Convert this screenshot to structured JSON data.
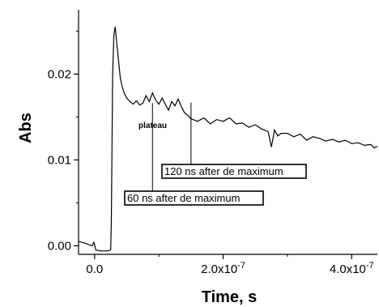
{
  "chart_data": {
    "type": "line",
    "title": "",
    "xlabel": "Time, s",
    "ylabel": "Abs",
    "xlim": [
      -2.5e-08,
      4.4e-07
    ],
    "ylim": [
      -0.001,
      0.0275
    ],
    "grid": false,
    "legend": "none",
    "line_color": "#000000",
    "x_ticks": [
      {
        "value": 0,
        "label": "0.0"
      },
      {
        "value": 2e-07,
        "label": "2.0x10",
        "exp": "-7"
      },
      {
        "value": 4e-07,
        "label": "4.0x10",
        "exp": "-7"
      }
    ],
    "y_ticks": [
      {
        "value": 0.0,
        "label": "0.00"
      },
      {
        "value": 0.01,
        "label": "0.01"
      },
      {
        "value": 0.02,
        "label": "0.02"
      }
    ],
    "series": [
      {
        "x": [
          -2.5e-08,
          -1.5e-08,
          -8e-09,
          -4e-09,
          -1e-09,
          0,
          2e-09,
          1e-08,
          2e-08,
          2.5e-08,
          2.6e-08,
          2.8e-08,
          3e-08,
          3.2e-08,
          3.4e-08,
          3.6e-08,
          3.8e-08,
          4e-08,
          4.3e-08,
          4.6e-08,
          5e-08,
          5.5e-08,
          6e-08,
          6.5e-08,
          7e-08,
          7.5e-08,
          8e-08,
          8.5e-08,
          9e-08,
          9.5e-08,
          1e-07,
          1.05e-07,
          1.1e-07,
          1.15e-07,
          1.2e-07,
          1.25e-07,
          1.3e-07,
          1.35e-07,
          1.4e-07,
          1.45e-07,
          1.5e-07,
          1.6e-07,
          1.7e-07,
          1.8e-07,
          1.9e-07,
          2e-07,
          2.1e-07,
          2.2e-07,
          2.3e-07,
          2.4e-07,
          2.5e-07,
          2.6e-07,
          2.7e-07,
          2.75e-07,
          2.8e-07,
          2.85e-07,
          2.9e-07,
          3e-07,
          3.1e-07,
          3.2e-07,
          3.3e-07,
          3.4e-07,
          3.5e-07,
          3.6e-07,
          3.7e-07,
          3.8e-07,
          3.9e-07,
          4e-07,
          4.1e-07,
          4.2e-07,
          4.3e-07,
          4.35e-07,
          4.4e-07
        ],
        "y": [
          0.0005,
          0.0003,
          0.0001,
          0.0,
          0.0004,
          0.0001,
          -0.0005,
          -0.0006,
          -0.0006,
          -0.0005,
          0.003,
          0.02,
          0.0245,
          0.0255,
          0.024,
          0.0225,
          0.021,
          0.0195,
          0.0185,
          0.0178,
          0.0172,
          0.0168,
          0.0165,
          0.0169,
          0.0164,
          0.0166,
          0.0175,
          0.0168,
          0.0178,
          0.017,
          0.0165,
          0.0172,
          0.0165,
          0.0158,
          0.0168,
          0.0163,
          0.0171,
          0.0162,
          0.0155,
          0.0152,
          0.0148,
          0.0145,
          0.0149,
          0.0142,
          0.0147,
          0.0145,
          0.0149,
          0.0142,
          0.0143,
          0.0138,
          0.0141,
          0.0136,
          0.0133,
          0.0115,
          0.0135,
          0.0128,
          0.0131,
          0.0131,
          0.0127,
          0.013,
          0.0123,
          0.0127,
          0.0125,
          0.0122,
          0.0124,
          0.0121,
          0.0123,
          0.0119,
          0.012,
          0.0117,
          0.0118,
          0.0114,
          0.0116
        ]
      }
    ],
    "annotations": [
      {
        "text": "60 ns after de maximum",
        "x": 9e-08,
        "y_top": 0.0166
      },
      {
        "text": "120 ns after de maximum",
        "x": 1.5e-07,
        "y_top": 0.0167
      },
      {
        "text": "plateau"
      }
    ]
  }
}
